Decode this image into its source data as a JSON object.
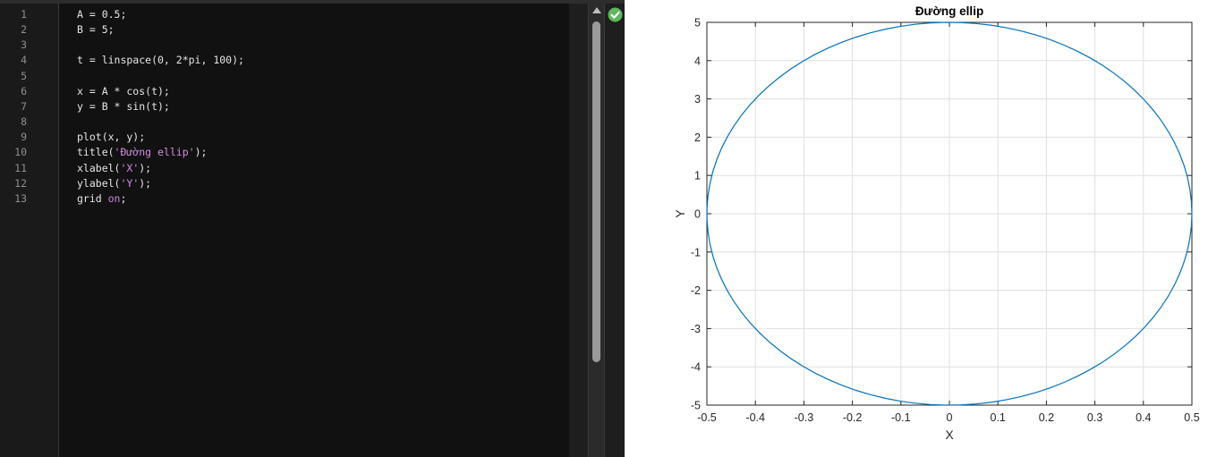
{
  "editor": {
    "line_numbers": [
      "1",
      "2",
      "3",
      "4",
      "5",
      "6",
      "7",
      "8",
      "9",
      "10",
      "11",
      "12",
      "13"
    ],
    "lines": [
      [
        {
          "t": "A = 0.5;",
          "c": "plain"
        }
      ],
      [
        {
          "t": "B = 5;",
          "c": "plain"
        }
      ],
      [],
      [
        {
          "t": "t = linspace(0, 2*pi, 100);",
          "c": "plain"
        }
      ],
      [],
      [
        {
          "t": "x = A * cos(t);",
          "c": "plain"
        }
      ],
      [
        {
          "t": "y = B * sin(t);",
          "c": "plain"
        }
      ],
      [],
      [
        {
          "t": "plot(x, y);",
          "c": "plain"
        }
      ],
      [
        {
          "t": "title(",
          "c": "plain"
        },
        {
          "t": "'Đường ellip'",
          "c": "str"
        },
        {
          "t": ");",
          "c": "plain"
        }
      ],
      [
        {
          "t": "xlabel(",
          "c": "plain"
        },
        {
          "t": "'X'",
          "c": "str"
        },
        {
          "t": ");",
          "c": "plain"
        }
      ],
      [
        {
          "t": "ylabel(",
          "c": "plain"
        },
        {
          "t": "'Y'",
          "c": "str"
        },
        {
          "t": ");",
          "c": "plain"
        }
      ],
      [
        {
          "t": "grid ",
          "c": "plain"
        },
        {
          "t": "on",
          "c": "kw"
        },
        {
          "t": ";",
          "c": "plain"
        }
      ]
    ],
    "status_icon": "check-circle-icon",
    "status_color": "#5cb85c"
  },
  "chart_data": {
    "type": "line",
    "title": "Đường ellip",
    "xlabel": "X",
    "ylabel": "Y",
    "xlim": [
      -0.5,
      0.5
    ],
    "ylim": [
      -5,
      5
    ],
    "x_ticks": [
      -0.5,
      -0.4,
      -0.3,
      -0.2,
      -0.1,
      0,
      0.1,
      0.2,
      0.3,
      0.4,
      0.5
    ],
    "x_tick_labels": [
      "-0.5",
      "-0.4",
      "-0.3",
      "-0.2",
      "-0.1",
      "0",
      "0.1",
      "0.2",
      "0.3",
      "0.4",
      "0.5"
    ],
    "y_ticks": [
      5,
      4,
      3,
      2,
      1,
      0,
      -1,
      -2,
      -3,
      -4,
      -5
    ],
    "y_tick_labels": [
      "5",
      "4",
      "3",
      "2",
      "1",
      "0",
      "-1",
      "-2",
      "-3",
      "-4",
      "-5"
    ],
    "grid": true,
    "line_color": "#0072bd",
    "series": [
      {
        "equation": {
          "A": 0.5,
          "B": 5,
          "t_start": 0,
          "t_end": 6.283185307179586,
          "n": 100
        }
      }
    ]
  }
}
